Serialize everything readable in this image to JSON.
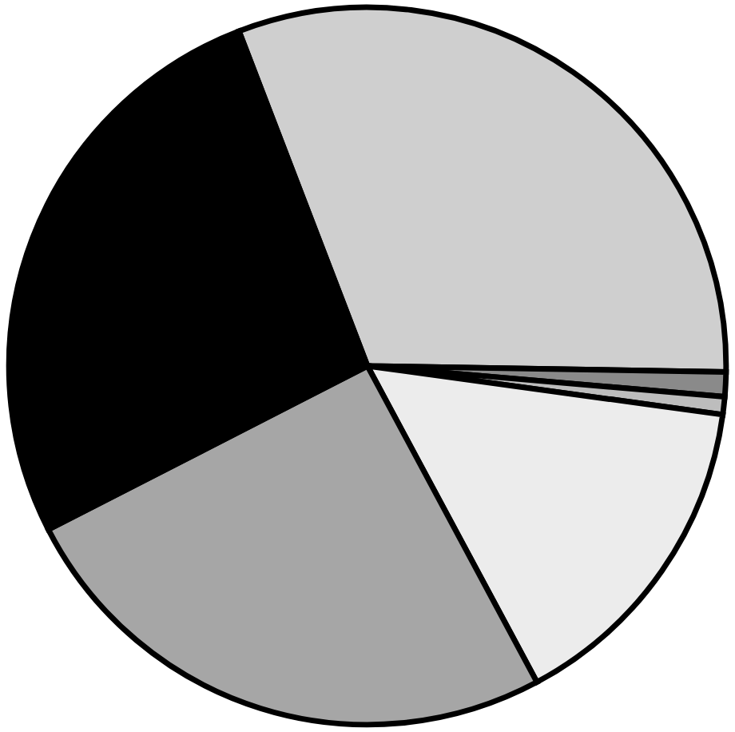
{
  "chart_data": {
    "type": "pie",
    "categories": [
      null,
      null,
      null,
      null,
      null,
      null
    ],
    "values": [
      31.1,
      1.1,
      0.8,
      15.0,
      25.3,
      26.7
    ],
    "colors": [
      "#cfcfcf",
      "#8a8a8a",
      "#bdbdbd",
      "#ececec",
      "#a6a6a6",
      "#000000"
    ]
  }
}
